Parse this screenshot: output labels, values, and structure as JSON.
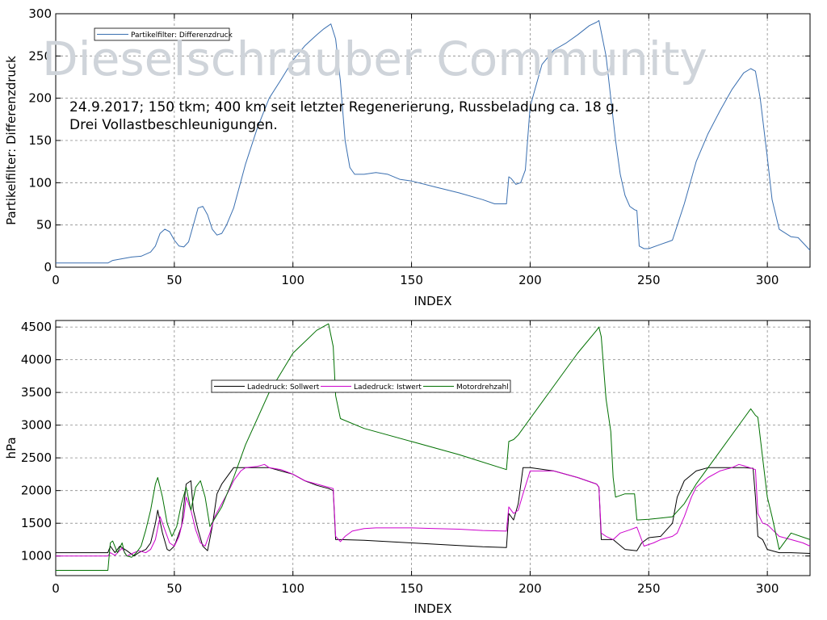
{
  "watermark": "Dieselschrauber Community",
  "chart_data": [
    {
      "type": "line",
      "xlabel": "INDEX",
      "ylabel": "Partikelfilter: Differenzdruck",
      "xlim": [
        0,
        318
      ],
      "ylim": [
        0,
        300
      ],
      "xticks": [
        0,
        50,
        100,
        150,
        200,
        250,
        300
      ],
      "yticks": [
        0,
        50,
        100,
        150,
        200,
        250,
        300
      ],
      "grid": true,
      "legend_position": "top-left",
      "annotation": [
        "24.9.2017; 150 tkm; 400 km seit letzter Regenerierung, Russbeladung ca. 18 g.",
        "Drei Vollastbeschleunigungen."
      ],
      "series": [
        {
          "name": "Partikelfilter: Differenzdruck",
          "color": "#3a6fb0",
          "x": [
            0,
            22,
            24,
            28,
            32,
            36,
            40,
            42,
            44,
            46,
            48,
            50,
            52,
            54,
            56,
            58,
            60,
            62,
            64,
            66,
            68,
            70,
            72,
            75,
            80,
            85,
            90,
            95,
            100,
            105,
            110,
            113,
            115,
            116,
            118,
            120,
            122,
            124,
            126,
            130,
            135,
            140,
            145,
            150,
            160,
            170,
            180,
            185,
            190,
            191,
            192,
            194,
            196,
            198,
            200,
            205,
            210,
            215,
            220,
            225,
            228,
            229,
            232,
            234,
            236,
            238,
            240,
            242,
            244,
            245,
            246,
            248,
            250,
            255,
            258,
            260,
            265,
            270,
            275,
            280,
            285,
            290,
            293,
            295,
            297,
            300,
            302,
            305,
            310,
            313,
            318
          ],
          "values": [
            5,
            5,
            8,
            10,
            12,
            13,
            18,
            25,
            40,
            45,
            42,
            32,
            25,
            24,
            30,
            50,
            70,
            72,
            62,
            45,
            38,
            40,
            50,
            70,
            122,
            165,
            200,
            222,
            245,
            262,
            275,
            282,
            286,
            288,
            270,
            220,
            150,
            118,
            110,
            110,
            112,
            110,
            104,
            102,
            95,
            88,
            80,
            75,
            75,
            107,
            105,
            98,
            100,
            115,
            190,
            240,
            257,
            265,
            275,
            286,
            290,
            292,
            250,
            200,
            150,
            110,
            85,
            72,
            68,
            67,
            25,
            22,
            22,
            27,
            30,
            32,
            75,
            125,
            158,
            185,
            210,
            230,
            235,
            232,
            200,
            130,
            80,
            45,
            36,
            35,
            20
          ]
        }
      ]
    },
    {
      "type": "line",
      "xlabel": "INDEX",
      "ylabel": "hPa",
      "xlim": [
        0,
        318
      ],
      "ylim": [
        700,
        4600
      ],
      "xticks": [
        0,
        50,
        100,
        150,
        200,
        250,
        300
      ],
      "yticks": [
        1000,
        1500,
        2000,
        2500,
        3000,
        3500,
        4000,
        4500
      ],
      "grid": true,
      "legend_position": "top-center",
      "series": [
        {
          "name": "Ladedruck: Sollwert",
          "color": "#000000",
          "x": [
            0,
            22,
            23,
            25,
            27,
            30,
            33,
            35,
            38,
            40,
            42,
            43,
            45,
            47,
            48,
            50,
            53,
            55,
            57,
            58,
            60,
            62,
            64,
            66,
            68,
            70,
            75,
            80,
            85,
            90,
            95,
            100,
            105,
            110,
            115,
            117,
            118,
            120,
            130,
            140,
            150,
            160,
            170,
            180,
            190,
            191,
            193,
            195,
            197,
            200,
            210,
            220,
            228,
            229,
            230,
            235,
            240,
            245,
            247,
            250,
            255,
            260,
            262,
            265,
            270,
            275,
            280,
            285,
            290,
            294,
            295,
            296,
            298,
            300,
            305,
            310,
            318
          ],
          "values": [
            1050,
            1050,
            1150,
            1050,
            1150,
            1080,
            1000,
            1050,
            1100,
            1200,
            1500,
            1700,
            1350,
            1100,
            1080,
            1150,
            1450,
            2100,
            2150,
            1700,
            1400,
            1150,
            1080,
            1450,
            1950,
            2100,
            2350,
            2350,
            2350,
            2350,
            2300,
            2250,
            2150,
            2080,
            2030,
            2000,
            1250,
            1250,
            1240,
            1220,
            1200,
            1180,
            1160,
            1140,
            1130,
            1650,
            1550,
            1800,
            2350,
            2350,
            2300,
            2200,
            2100,
            2050,
            1250,
            1250,
            1100,
            1080,
            1200,
            1280,
            1300,
            1500,
            1900,
            2150,
            2300,
            2350,
            2350,
            2350,
            2350,
            2340,
            1900,
            1300,
            1250,
            1100,
            1050,
            1050,
            1040
          ]
        },
        {
          "name": "Ladedruck: Istwert",
          "color": "#cc00cc",
          "x": [
            0,
            22,
            23,
            25,
            28,
            30,
            33,
            35,
            38,
            40,
            42,
            44,
            46,
            48,
            50,
            52,
            54,
            55,
            57,
            59,
            61,
            63,
            65,
            67,
            70,
            73,
            75,
            78,
            80,
            85,
            88,
            90,
            95,
            100,
            105,
            110,
            115,
            117,
            118,
            120,
            122,
            125,
            130,
            135,
            140,
            150,
            160,
            170,
            180,
            190,
            191,
            193,
            195,
            197,
            200,
            210,
            220,
            228,
            229,
            230,
            232,
            235,
            238,
            242,
            245,
            248,
            252,
            255,
            260,
            262,
            265,
            268,
            270,
            275,
            280,
            285,
            288,
            290,
            295,
            296,
            298,
            300,
            305,
            310,
            315,
            318
          ],
          "values": [
            1000,
            1000,
            1050,
            1010,
            1120,
            1000,
            1050,
            1080,
            1050,
            1100,
            1250,
            1600,
            1400,
            1200,
            1150,
            1300,
            1600,
            1900,
            1700,
            1400,
            1200,
            1150,
            1350,
            1600,
            1800,
            2000,
            2150,
            2300,
            2350,
            2370,
            2400,
            2350,
            2320,
            2250,
            2150,
            2100,
            2050,
            2030,
            1300,
            1220,
            1300,
            1380,
            1420,
            1430,
            1430,
            1430,
            1420,
            1410,
            1390,
            1380,
            1750,
            1650,
            1700,
            1950,
            2300,
            2300,
            2200,
            2100,
            2050,
            1350,
            1300,
            1250,
            1350,
            1400,
            1440,
            1150,
            1200,
            1250,
            1300,
            1350,
            1600,
            1900,
            2050,
            2200,
            2300,
            2350,
            2400,
            2380,
            2320,
            1650,
            1500,
            1480,
            1300,
            1250,
            1200,
            1150
          ]
        },
        {
          "name": "Motordrehzahl",
          "color": "#007000",
          "x": [
            0,
            22,
            23,
            24,
            26,
            28,
            29,
            30,
            32,
            34,
            36,
            38,
            40,
            42,
            43,
            45,
            47,
            49,
            51,
            53,
            55,
            57,
            59,
            61,
            63,
            65,
            70,
            75,
            80,
            90,
            100,
            110,
            115,
            117,
            118,
            120,
            130,
            150,
            170,
            190,
            191,
            193,
            195,
            200,
            210,
            220,
            228,
            229,
            230,
            232,
            234,
            235,
            236,
            240,
            244,
            245,
            250,
            255,
            260,
            265,
            270,
            280,
            290,
            293,
            295,
            296,
            298,
            300,
            302,
            305,
            310,
            318
          ],
          "values": [
            780,
            780,
            1200,
            1230,
            1050,
            1200,
            1050,
            1000,
            980,
            1050,
            1150,
            1400,
            1700,
            2100,
            2200,
            1900,
            1500,
            1300,
            1450,
            1800,
            2050,
            1700,
            2050,
            2150,
            1900,
            1450,
            1750,
            2200,
            2700,
            3500,
            4100,
            4450,
            4550,
            4200,
            3450,
            3100,
            2950,
            2750,
            2550,
            2320,
            2750,
            2780,
            2850,
            3100,
            3600,
            4100,
            4450,
            4500,
            4350,
            3400,
            2900,
            2200,
            1900,
            1950,
            1950,
            1550,
            1560,
            1580,
            1600,
            1800,
            2100,
            2600,
            3100,
            3250,
            3150,
            3120,
            2500,
            1900,
            1600,
            1100,
            1350,
            1250
          ]
        }
      ]
    }
  ]
}
